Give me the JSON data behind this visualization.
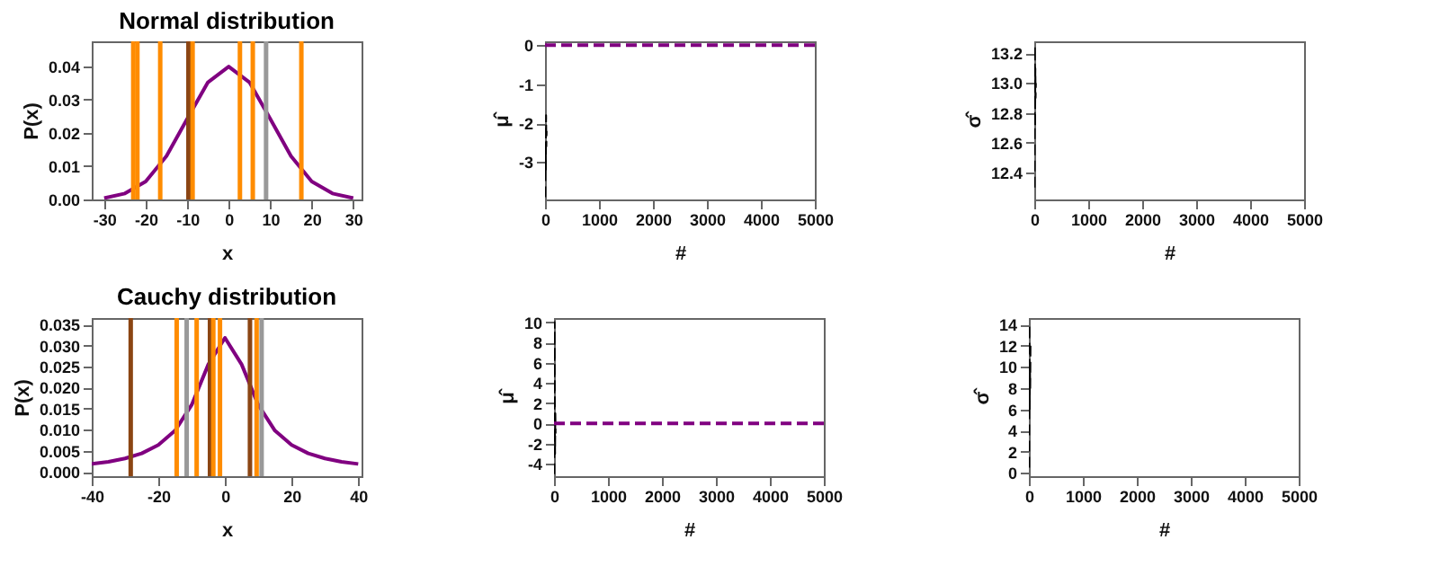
{
  "chart_data": [
    {
      "type": "line",
      "title": "Normal distribution",
      "xlabel": "x",
      "ylabel": "P(x)",
      "xlim": [
        -33,
        32
      ],
      "xticks": [
        -30,
        -20,
        -10,
        0,
        10,
        20,
        30
      ],
      "ylim": [
        0,
        0.0475
      ],
      "yticks": [
        {
          "value": 0,
          "label": "0.00"
        },
        0.01,
        0.02,
        0.03,
        0.04
      ],
      "grid": false,
      "series": [
        {
          "color": "#800080",
          "line_style": "solid",
          "x": [
            -30,
            -25,
            -20,
            -15,
            -10,
            -5,
            0,
            5,
            10,
            15,
            20,
            25,
            30
          ],
          "values": [
            0.0004,
            0.0018,
            0.0054,
            0.013,
            0.0242,
            0.0352,
            0.0399,
            0.0352,
            0.0242,
            0.013,
            0.0054,
            0.0018,
            0.0004
          ]
        }
      ],
      "ref_lines": [
        {
          "axis": "x",
          "value": -23,
          "color": "#ff8c00"
        },
        {
          "axis": "x",
          "value": -22,
          "color": "#ff8c00"
        },
        {
          "axis": "x",
          "value": -16.5,
          "color": "#ff8c00"
        },
        {
          "axis": "x",
          "value": -9.7,
          "color": "#8b4513"
        },
        {
          "axis": "x",
          "value": -8.7,
          "color": "#ff8c00"
        },
        {
          "axis": "x",
          "value": 2.7,
          "color": "#ff8c00"
        },
        {
          "axis": "x",
          "value": 5.8,
          "color": "#ff8c00"
        },
        {
          "axis": "x",
          "value": 9,
          "color": "#999999"
        },
        {
          "axis": "x",
          "value": 17.5,
          "color": "#ff8c00"
        }
      ]
    },
    {
      "type": "line",
      "xlabel": "#",
      "ylabel": "μ̂",
      "xlim": [
        0,
        5000
      ],
      "xticks": [
        0,
        1000,
        2000,
        3000,
        4000,
        5000
      ],
      "ylim": [
        -3.96,
        0.1
      ],
      "yticks": [
        -3,
        -2,
        -1,
        0
      ],
      "grid": false,
      "series": [
        {
          "color": "#000000",
          "line_style": "dashed",
          "x": [
            5,
            10,
            15,
            20,
            25,
            30
          ],
          "values": [
            -3.9,
            -2.5,
            -3.2,
            -1.8,
            -2.6,
            -2.2
          ]
        }
      ],
      "ref_lines": [
        {
          "axis": "y",
          "value": 0,
          "color": "#800080",
          "line_style": "dashed"
        }
      ]
    },
    {
      "type": "line",
      "xlabel": "#",
      "ylabel": "σ̂",
      "xlim": [
        0,
        5000
      ],
      "xticks": [
        0,
        1000,
        2000,
        3000,
        4000,
        5000
      ],
      "ylim": [
        12.22,
        13.28
      ],
      "yticks": [
        {
          "value": 12.4,
          "label": "12.4"
        },
        {
          "value": 12.6,
          "label": "12.6"
        },
        {
          "value": 12.8,
          "label": "12.8"
        },
        {
          "value": 13,
          "label": "13.0"
        },
        {
          "value": 13.2,
          "label": "13.2"
        }
      ],
      "grid": false,
      "series": [
        {
          "color": "#000000",
          "line_style": "dashed",
          "x": [
            5,
            10,
            15,
            20,
            25,
            30
          ],
          "values": [
            12.3,
            13.25,
            12.7,
            13.1,
            12.9,
            13.0
          ]
        }
      ]
    },
    {
      "type": "line",
      "title": "Cauchy distribution",
      "xlabel": "x",
      "ylabel": "P(x)",
      "xlim": [
        -40,
        41
      ],
      "xticks": [
        -40,
        -20,
        0,
        20,
        40
      ],
      "ylim": [
        -0.001,
        0.0365
      ],
      "yticks": [
        {
          "value": 0,
          "label": "0.000"
        },
        {
          "value": 0.005,
          "label": "0.005"
        },
        {
          "value": 0.01,
          "label": "0.010"
        },
        {
          "value": 0.015,
          "label": "0.015"
        },
        {
          "value": 0.02,
          "label": "0.020"
        },
        {
          "value": 0.025,
          "label": "0.025"
        },
        {
          "value": 0.03,
          "label": "0.030"
        },
        {
          "value": 0.035,
          "label": "0.035"
        }
      ],
      "grid": false,
      "series": [
        {
          "color": "#800080",
          "line_style": "solid",
          "x": [
            -40,
            -35,
            -30,
            -25,
            -20,
            -15,
            -10,
            -5,
            0,
            5,
            10,
            15,
            20,
            25,
            30,
            35,
            40
          ],
          "values": [
            0.0019,
            0.0024,
            0.0032,
            0.0044,
            0.0064,
            0.0098,
            0.0159,
            0.0255,
            0.0318,
            0.0255,
            0.0159,
            0.0098,
            0.0064,
            0.0044,
            0.0032,
            0.0024,
            0.0019
          ]
        }
      ],
      "ref_lines": [
        {
          "axis": "x",
          "value": -28.3,
          "color": "#8b4513"
        },
        {
          "axis": "x",
          "value": -14.5,
          "color": "#ff8c00"
        },
        {
          "axis": "x",
          "value": -11.5,
          "color": "#999999"
        },
        {
          "axis": "x",
          "value": -8.5,
          "color": "#ff8c00"
        },
        {
          "axis": "x",
          "value": -4.5,
          "color": "#8b4513"
        },
        {
          "axis": "x",
          "value": -3.5,
          "color": "#ff8c00"
        },
        {
          "axis": "x",
          "value": -1.5,
          "color": "#ff8c00"
        },
        {
          "axis": "x",
          "value": 7.5,
          "color": "#8b4513"
        },
        {
          "axis": "x",
          "value": 9.5,
          "color": "#ff8c00"
        },
        {
          "axis": "x",
          "value": 11,
          "color": "#999999"
        }
      ]
    },
    {
      "type": "line",
      "xlabel": "#",
      "ylabel": "μ̂",
      "xlim": [
        0,
        5000
      ],
      "xticks": [
        0,
        1000,
        2000,
        3000,
        4000,
        5000
      ],
      "ylim": [
        -5.2,
        10.4
      ],
      "yticks": [
        -4,
        -2,
        0,
        2,
        4,
        6,
        8,
        10
      ],
      "grid": false,
      "series": [
        {
          "color": "#000000",
          "line_style": "dashed",
          "x": [
            5,
            10,
            15,
            20,
            25,
            30
          ],
          "values": [
            -5,
            10,
            2,
            -3,
            1,
            -1
          ]
        }
      ],
      "ref_lines": [
        {
          "axis": "y",
          "value": 0,
          "color": "#800080",
          "line_style": "dashed"
        }
      ]
    },
    {
      "type": "line",
      "xlabel": "#",
      "ylabel": "σ̂",
      "xlim": [
        0,
        5000
      ],
      "xticks": [
        0,
        1000,
        2000,
        3000,
        4000,
        5000
      ],
      "ylim": [
        -0.3,
        14.6
      ],
      "yticks": [
        0,
        2,
        4,
        6,
        8,
        10,
        12,
        14
      ],
      "grid": false,
      "series": [
        {
          "color": "#000000",
          "line_style": "dashed",
          "x": [
            5,
            10,
            15,
            20,
            25,
            30
          ],
          "values": [
            0.5,
            14,
            6,
            10,
            8,
            12
          ]
        }
      ]
    }
  ]
}
